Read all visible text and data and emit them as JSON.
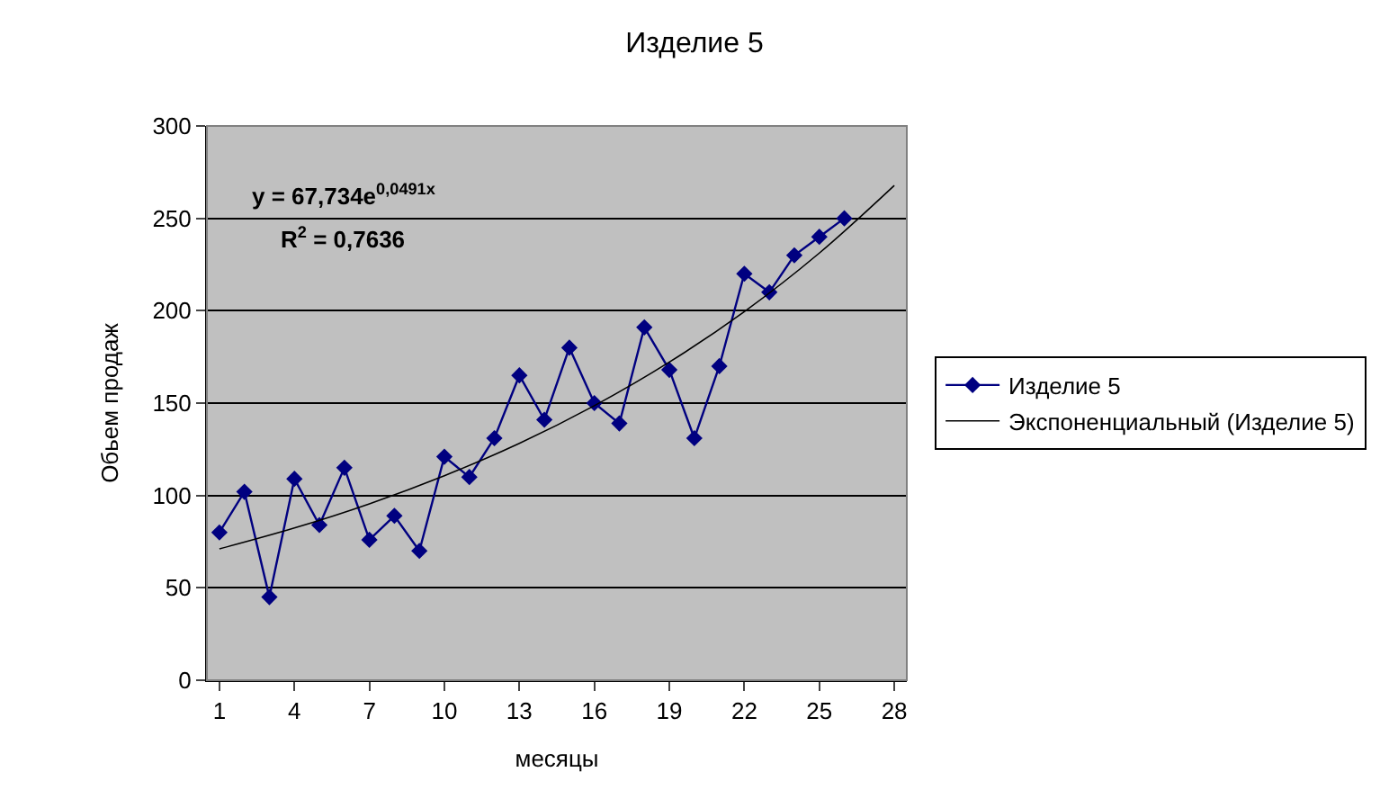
{
  "chart_data": {
    "type": "line",
    "title": "Изделие 5",
    "xlabel": "месяцы",
    "ylabel": "Обьем продаж",
    "x": [
      1,
      2,
      3,
      4,
      5,
      6,
      7,
      8,
      9,
      10,
      11,
      12,
      13,
      14,
      15,
      16,
      17,
      18,
      19,
      20,
      21,
      22,
      23,
      24,
      25,
      26
    ],
    "series": [
      {
        "name": "Изделие 5",
        "color": "#000080",
        "values": [
          80,
          102,
          45,
          109,
          84,
          115,
          76,
          89,
          70,
          121,
          110,
          131,
          165,
          141,
          180,
          150,
          139,
          191,
          168,
          131,
          170,
          220,
          210,
          230,
          240,
          250
        ],
        "marker": "diamond"
      },
      {
        "name": "Экспоненциальный (Изделие 5)",
        "type": "line",
        "color": "#000000",
        "x": [
          1,
          4,
          7,
          10,
          13,
          16,
          19,
          22,
          25,
          28
        ],
        "values": [
          71.1,
          82.4,
          95.5,
          110.7,
          128.2,
          148.6,
          172.2,
          199.5,
          231.2,
          267.8
        ],
        "marker": "none"
      }
    ],
    "annotations": [
      "y = 67,734e$^{0,0491x}$",
      "R$^{2}$ = 0,7636"
    ],
    "xlim": [
      0.5,
      28.5
    ],
    "xticks": [
      1,
      4,
      7,
      10,
      13,
      16,
      19,
      22,
      25,
      28
    ],
    "ylim": [
      0,
      300
    ],
    "yticks": [
      0,
      50,
      100,
      150,
      200,
      250,
      300
    ],
    "grid": "y",
    "legend": "right"
  }
}
